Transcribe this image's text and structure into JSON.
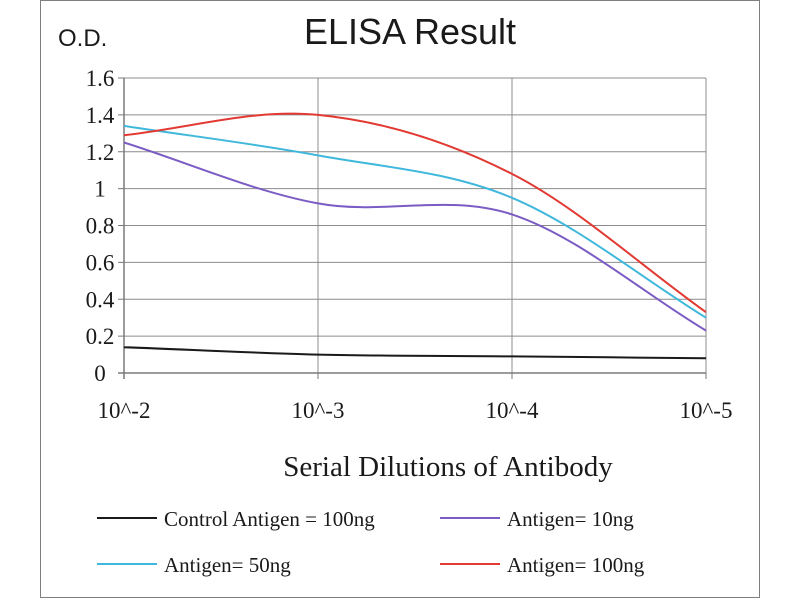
{
  "chart_data": {
    "type": "line",
    "title": "ELISA Result",
    "ylabel": "O.D.",
    "xlabel": "Serial Dilutions  of Antibody",
    "x_tick_labels": [
      "10^-2",
      "10^-3",
      "10^-4",
      "10^-5"
    ],
    "y_tick_labels": [
      "0",
      "0.2",
      "0.4",
      "0.6",
      "0.8",
      "1",
      "1.2",
      "1.4",
      "1.6"
    ],
    "ylim": [
      0,
      1.6
    ],
    "grid": true,
    "legend_position": "bottom",
    "series": [
      {
        "name": "Control Antigen = 100ng",
        "color": "#1a1a1a",
        "x": [
          0.01,
          0.001,
          0.0001,
          1e-05
        ],
        "values": [
          0.14,
          0.1,
          0.09,
          0.08
        ]
      },
      {
        "name": "Antigen= 10ng",
        "color": "#7b5cc4",
        "x": [
          0.01,
          0.001,
          0.0001,
          1e-05
        ],
        "values": [
          1.25,
          0.92,
          0.86,
          0.23
        ]
      },
      {
        "name": "Antigen= 50ng",
        "color": "#3fb8dc",
        "x": [
          0.01,
          0.001,
          0.0001,
          1e-05
        ],
        "values": [
          1.34,
          1.18,
          0.95,
          0.3
        ]
      },
      {
        "name": "Antigen= 100ng",
        "color": "#e23a33",
        "x": [
          0.01,
          0.001,
          0.0001,
          1e-05
        ],
        "values": [
          1.29,
          1.4,
          1.08,
          0.33
        ]
      }
    ]
  }
}
